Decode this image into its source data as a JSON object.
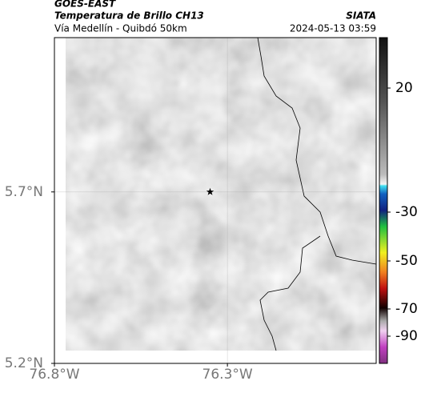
{
  "header": {
    "title": "GOES-EAST",
    "subtitle": "Temperatura de Brillo CH13",
    "org": "SIATA",
    "route": "Vía Medellín - Quibdó 50km",
    "datetime": "2024-05-13 03:59"
  },
  "map": {
    "xlim": [
      -76.8,
      -75.87
    ],
    "ylim": [
      5.2,
      6.15
    ],
    "xticks": [
      {
        "value": -76.8,
        "label": "76.8°W"
      },
      {
        "value": -76.3,
        "label": "76.3°W"
      }
    ],
    "yticks": [
      {
        "value": 5.2,
        "label": "5.2°N"
      },
      {
        "value": 5.7,
        "label": "5.7°N"
      }
    ],
    "grid": true,
    "marker": {
      "lon": -76.35,
      "lat": 5.7
    }
  },
  "colorbar": {
    "ticks": [
      20,
      -30,
      -50,
      -70,
      -90
    ]
  }
}
